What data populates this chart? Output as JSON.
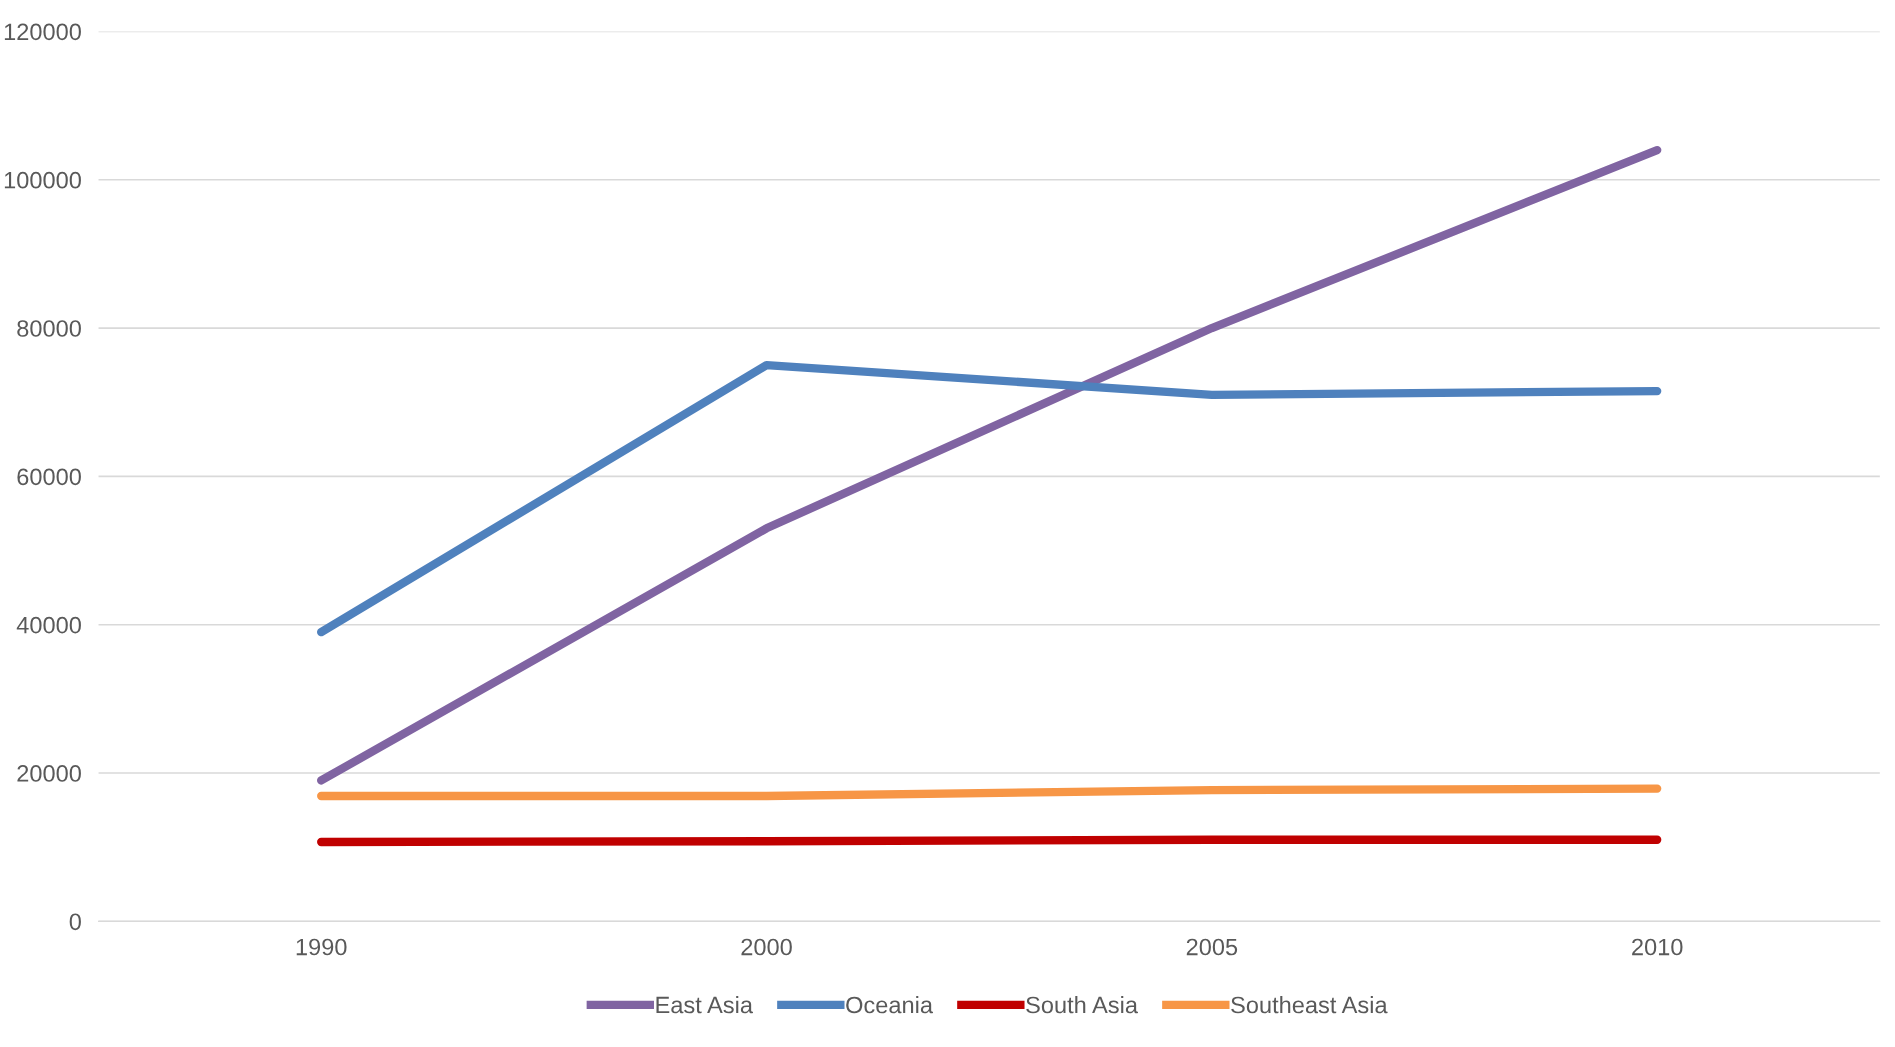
{
  "chart_data": {
    "type": "line",
    "categories": [
      "1990",
      "2000",
      "2005",
      "2010"
    ],
    "series": [
      {
        "name": "East Asia",
        "color": "#8064a2",
        "values": [
          19000,
          53000,
          80000,
          104000
        ]
      },
      {
        "name": "Oceania",
        "color": "#4f81bd",
        "values": [
          39000,
          75000,
          71000,
          71500
        ]
      },
      {
        "name": "South Asia",
        "color": "#c00000",
        "values": [
          10700,
          10800,
          11000,
          11000
        ]
      },
      {
        "name": "Southeast Asia",
        "color": "#f79646",
        "values": [
          16900,
          16900,
          17700,
          17900
        ]
      }
    ],
    "ylim": [
      0,
      120000
    ],
    "yticks": [
      0,
      20000,
      40000,
      60000,
      80000,
      100000,
      120000
    ],
    "grid": "y",
    "legend": "bottom",
    "marker": "none",
    "line_style": "solid"
  }
}
